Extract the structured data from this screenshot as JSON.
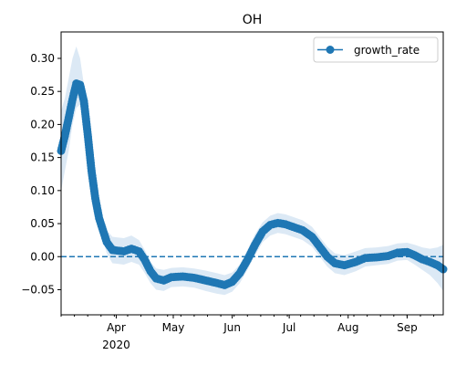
{
  "chart_data": {
    "type": "line",
    "title": "OH",
    "xlabel": "",
    "ylabel": "",
    "x_axis": {
      "type": "date",
      "range": [
        "2020-03-03",
        "2020-09-20"
      ],
      "month_ticks": [
        {
          "date": "2020-04-01",
          "label": "Apr"
        },
        {
          "date": "2020-05-01",
          "label": "May"
        },
        {
          "date": "2020-06-01",
          "label": "Jun"
        },
        {
          "date": "2020-07-01",
          "label": "Jul"
        },
        {
          "date": "2020-08-01",
          "label": "Aug"
        },
        {
          "date": "2020-09-01",
          "label": "Sep"
        }
      ],
      "year_label": {
        "date": "2020-04-01",
        "label": "2020"
      }
    },
    "ylim": [
      -0.088,
      0.34
    ],
    "yticks": [
      {
        "value": 0.3,
        "label": "0.30"
      },
      {
        "value": 0.25,
        "label": "0.25"
      },
      {
        "value": 0.2,
        "label": "0.20"
      },
      {
        "value": 0.15,
        "label": "0.15"
      },
      {
        "value": 0.1,
        "label": "0.10"
      },
      {
        "value": 0.05,
        "label": "0.05"
      },
      {
        "value": 0.0,
        "label": "0.00"
      },
      {
        "value": -0.05,
        "label": "−0.05"
      }
    ],
    "grid": false,
    "legend": {
      "position": "top-right",
      "entries": [
        {
          "label": "growth_rate"
        }
      ]
    },
    "reference_line": {
      "y": 0,
      "style": "dashed"
    },
    "series": [
      {
        "name": "growth_rate",
        "color": "#1f77b4",
        "band_color": "#dce9f5",
        "points": [
          {
            "date": "2020-03-03",
            "y": 0.16,
            "lo": 0.1,
            "hi": 0.22
          },
          {
            "date": "2020-03-05",
            "y": 0.183,
            "lo": 0.13,
            "hi": 0.24
          },
          {
            "date": "2020-03-07",
            "y": 0.21,
            "lo": 0.16,
            "hi": 0.27
          },
          {
            "date": "2020-03-09",
            "y": 0.238,
            "lo": 0.2,
            "hi": 0.3
          },
          {
            "date": "2020-03-11",
            "y": 0.262,
            "lo": 0.225,
            "hi": 0.318
          },
          {
            "date": "2020-03-13",
            "y": 0.26,
            "lo": 0.23,
            "hi": 0.3
          },
          {
            "date": "2020-03-15",
            "y": 0.235,
            "lo": 0.2,
            "hi": 0.26
          },
          {
            "date": "2020-03-17",
            "y": 0.185,
            "lo": 0.16,
            "hi": 0.21
          },
          {
            "date": "2020-03-19",
            "y": 0.13,
            "lo": 0.11,
            "hi": 0.15
          },
          {
            "date": "2020-03-21",
            "y": 0.088,
            "lo": 0.07,
            "hi": 0.105
          },
          {
            "date": "2020-03-23",
            "y": 0.058,
            "lo": 0.045,
            "hi": 0.075
          },
          {
            "date": "2020-03-25",
            "y": 0.04,
            "lo": 0.025,
            "hi": 0.055
          },
          {
            "date": "2020-03-27",
            "y": 0.022,
            "lo": 0.005,
            "hi": 0.04
          },
          {
            "date": "2020-03-30",
            "y": 0.01,
            "lo": -0.01,
            "hi": 0.03
          },
          {
            "date": "2020-04-05",
            "y": 0.008,
            "lo": -0.012,
            "hi": 0.028
          },
          {
            "date": "2020-04-09",
            "y": 0.012,
            "lo": -0.008,
            "hi": 0.032
          },
          {
            "date": "2020-04-13",
            "y": 0.008,
            "lo": -0.012,
            "hi": 0.025
          },
          {
            "date": "2020-04-16",
            "y": -0.005,
            "lo": -0.025,
            "hi": 0.01
          },
          {
            "date": "2020-04-19",
            "y": -0.022,
            "lo": -0.04,
            "hi": -0.008
          },
          {
            "date": "2020-04-22",
            "y": -0.033,
            "lo": -0.05,
            "hi": -0.018
          },
          {
            "date": "2020-04-26",
            "y": -0.036,
            "lo": -0.052,
            "hi": -0.02
          },
          {
            "date": "2020-04-30",
            "y": -0.031,
            "lo": -0.046,
            "hi": -0.017
          },
          {
            "date": "2020-05-06",
            "y": -0.03,
            "lo": -0.045,
            "hi": -0.016
          },
          {
            "date": "2020-05-12",
            "y": -0.032,
            "lo": -0.047,
            "hi": -0.018
          },
          {
            "date": "2020-05-18",
            "y": -0.036,
            "lo": -0.052,
            "hi": -0.021
          },
          {
            "date": "2020-05-24",
            "y": -0.04,
            "lo": -0.056,
            "hi": -0.025
          },
          {
            "date": "2020-05-28",
            "y": -0.043,
            "lo": -0.058,
            "hi": -0.028
          },
          {
            "date": "2020-06-01",
            "y": -0.038,
            "lo": -0.053,
            "hi": -0.024
          },
          {
            "date": "2020-06-05",
            "y": -0.025,
            "lo": -0.04,
            "hi": -0.012
          },
          {
            "date": "2020-06-09",
            "y": -0.005,
            "lo": -0.02,
            "hi": 0.01
          },
          {
            "date": "2020-06-13",
            "y": 0.018,
            "lo": 0.002,
            "hi": 0.034
          },
          {
            "date": "2020-06-17",
            "y": 0.038,
            "lo": 0.022,
            "hi": 0.052
          },
          {
            "date": "2020-06-21",
            "y": 0.048,
            "lo": 0.032,
            "hi": 0.062
          },
          {
            "date": "2020-06-25",
            "y": 0.051,
            "lo": 0.036,
            "hi": 0.066
          },
          {
            "date": "2020-06-29",
            "y": 0.049,
            "lo": 0.034,
            "hi": 0.064
          },
          {
            "date": "2020-07-03",
            "y": 0.045,
            "lo": 0.03,
            "hi": 0.06
          },
          {
            "date": "2020-07-08",
            "y": 0.04,
            "lo": 0.025,
            "hi": 0.055
          },
          {
            "date": "2020-07-13",
            "y": 0.03,
            "lo": 0.015,
            "hi": 0.045
          },
          {
            "date": "2020-07-17",
            "y": 0.015,
            "lo": 0.0,
            "hi": 0.03
          },
          {
            "date": "2020-07-21",
            "y": 0.0,
            "lo": -0.015,
            "hi": 0.015
          },
          {
            "date": "2020-07-25",
            "y": -0.01,
            "lo": -0.025,
            "hi": 0.005
          },
          {
            "date": "2020-07-30",
            "y": -0.013,
            "lo": -0.028,
            "hi": 0.002
          },
          {
            "date": "2020-08-05",
            "y": -0.008,
            "lo": -0.022,
            "hi": 0.008
          },
          {
            "date": "2020-08-10",
            "y": -0.002,
            "lo": -0.015,
            "hi": 0.013
          },
          {
            "date": "2020-08-16",
            "y": -0.001,
            "lo": -0.013,
            "hi": 0.014
          },
          {
            "date": "2020-08-22",
            "y": 0.001,
            "lo": -0.011,
            "hi": 0.016
          },
          {
            "date": "2020-08-27",
            "y": 0.006,
            "lo": -0.006,
            "hi": 0.02
          },
          {
            "date": "2020-09-01",
            "y": 0.007,
            "lo": -0.005,
            "hi": 0.021
          },
          {
            "date": "2020-09-05",
            "y": 0.002,
            "lo": -0.012,
            "hi": 0.018
          },
          {
            "date": "2020-09-09",
            "y": -0.004,
            "lo": -0.02,
            "hi": 0.014
          },
          {
            "date": "2020-09-13",
            "y": -0.008,
            "lo": -0.028,
            "hi": 0.012
          },
          {
            "date": "2020-09-17",
            "y": -0.013,
            "lo": -0.04,
            "hi": 0.014
          },
          {
            "date": "2020-09-20",
            "y": -0.019,
            "lo": -0.052,
            "hi": 0.018
          }
        ]
      }
    ]
  }
}
